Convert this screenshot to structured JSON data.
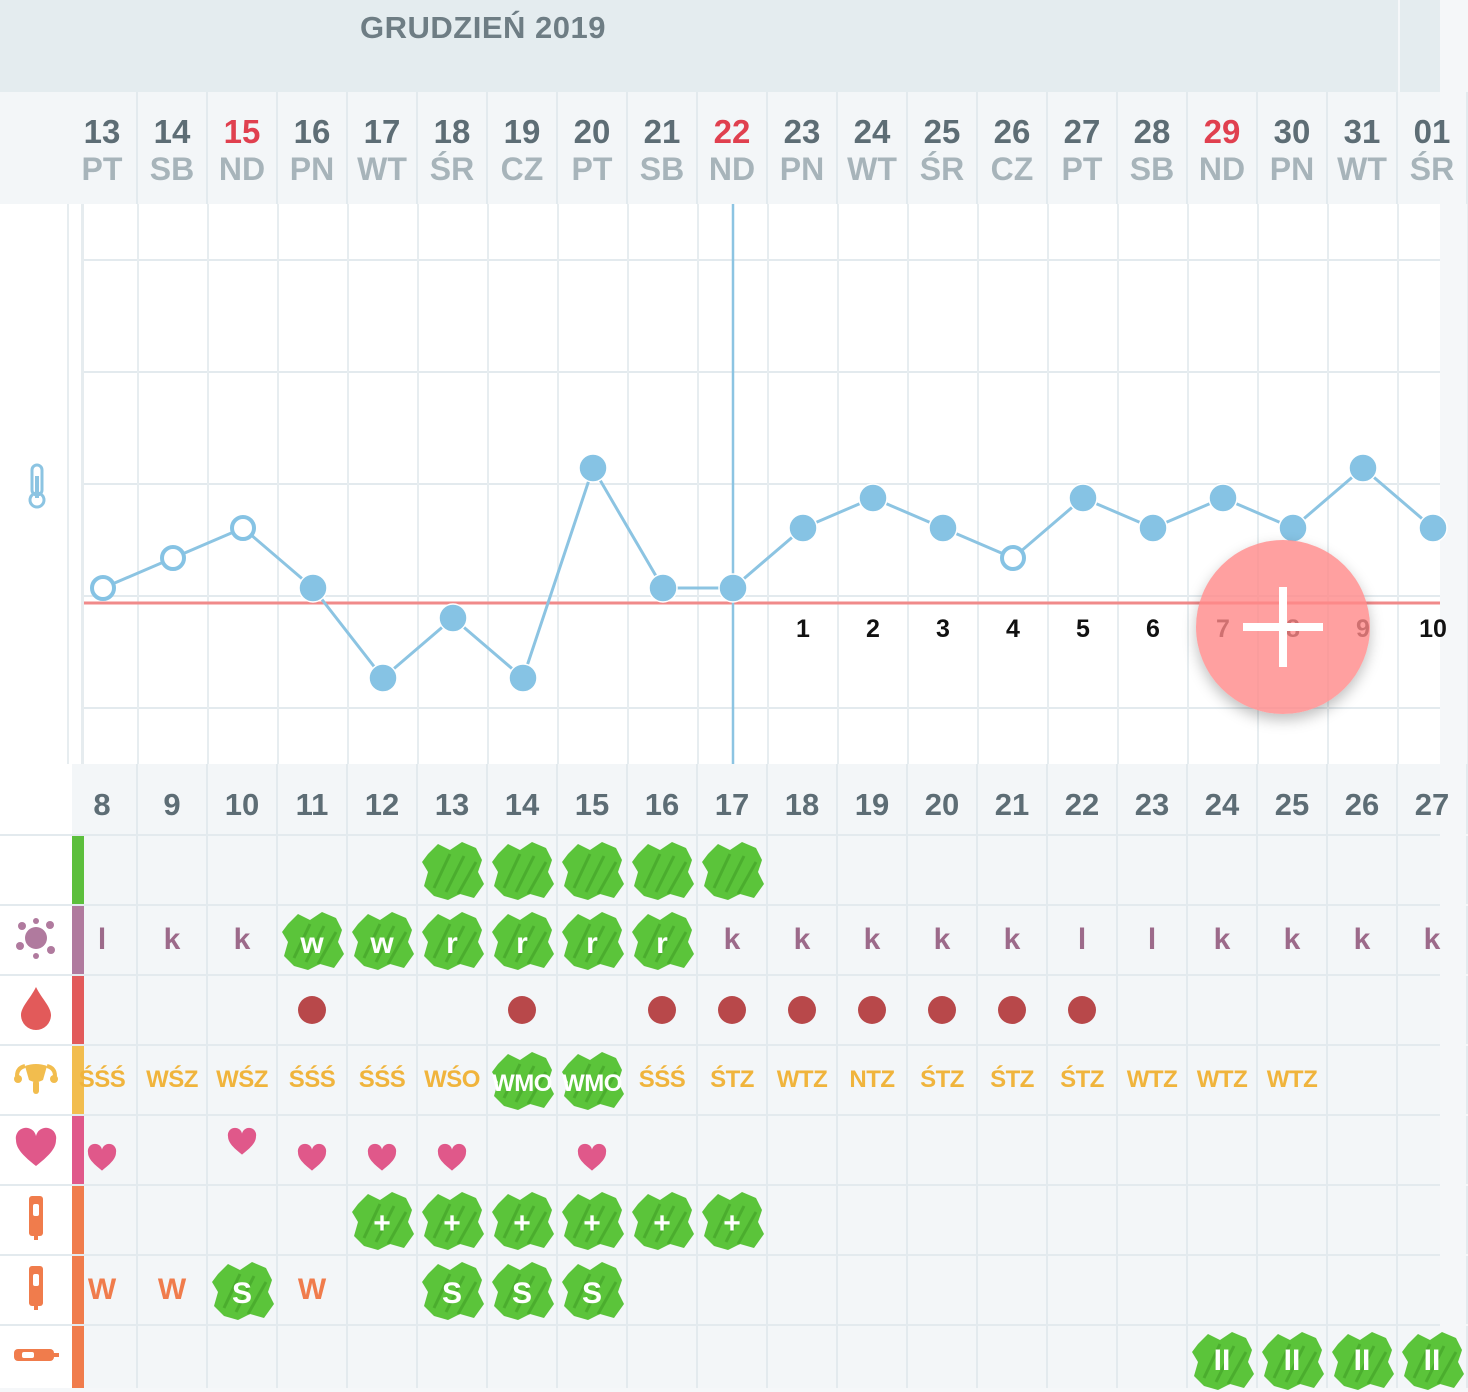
{
  "month_title": "GRUDZIEŃ 2019",
  "dates": [
    {
      "num": "13",
      "day": "PT",
      "sunday": false
    },
    {
      "num": "14",
      "day": "SB",
      "sunday": false
    },
    {
      "num": "15",
      "day": "ND",
      "sunday": true
    },
    {
      "num": "16",
      "day": "PN",
      "sunday": false
    },
    {
      "num": "17",
      "day": "WT",
      "sunday": false
    },
    {
      "num": "18",
      "day": "ŚR",
      "sunday": false
    },
    {
      "num": "19",
      "day": "CZ",
      "sunday": false
    },
    {
      "num": "20",
      "day": "PT",
      "sunday": false
    },
    {
      "num": "21",
      "day": "SB",
      "sunday": false
    },
    {
      "num": "22",
      "day": "ND",
      "sunday": true
    },
    {
      "num": "23",
      "day": "PN",
      "sunday": false
    },
    {
      "num": "24",
      "day": "WT",
      "sunday": false
    },
    {
      "num": "25",
      "day": "ŚR",
      "sunday": false
    },
    {
      "num": "26",
      "day": "CZ",
      "sunday": false
    },
    {
      "num": "27",
      "day": "PT",
      "sunday": false
    },
    {
      "num": "28",
      "day": "SB",
      "sunday": false
    },
    {
      "num": "29",
      "day": "ND",
      "sunday": true
    },
    {
      "num": "30",
      "day": "PN",
      "sunday": false
    },
    {
      "num": "31",
      "day": "WT",
      "sunday": false
    },
    {
      "num": "01",
      "day": "ŚR",
      "sunday": false
    }
  ],
  "chart_data": {
    "type": "line",
    "series": [
      {
        "values": [
          0,
          1,
          2,
          0,
          -3,
          -1,
          -3,
          4,
          0,
          0,
          2,
          3,
          2,
          1,
          3,
          2,
          3,
          2,
          4,
          2
        ],
        "open_markers": [
          true,
          true,
          true,
          false,
          false,
          false,
          false,
          false,
          false,
          false,
          false,
          false,
          false,
          true,
          false,
          false,
          false,
          false,
          false,
          false
        ]
      }
    ],
    "coverline_value": -0.5,
    "marker_day_index": 9,
    "post_marker_counts": [
      "1",
      "2",
      "3",
      "4",
      "5",
      "6",
      "7",
      "8",
      "9",
      "10"
    ]
  },
  "cycle_days": [
    "8",
    "9",
    "10",
    "11",
    "12",
    "13",
    "14",
    "15",
    "16",
    "17",
    "18",
    "19",
    "20",
    "21",
    "22",
    "23",
    "24",
    "25",
    "26",
    "27"
  ],
  "rows": [
    {
      "id": "row-1",
      "icon": "green-bar",
      "strip_color": "#5cbf3c",
      "text_color": "#ffffff",
      "cells": [
        {
          "i": 5,
          "t": "",
          "blob": true
        },
        {
          "i": 6,
          "t": "",
          "blob": true
        },
        {
          "i": 7,
          "t": "",
          "blob": true
        },
        {
          "i": 8,
          "t": "",
          "blob": true
        },
        {
          "i": 9,
          "t": "",
          "blob": true
        }
      ]
    },
    {
      "id": "mucus",
      "icon": "mucus-icon",
      "strip_color": "#b07a9e",
      "text_color": "#9c6a8a",
      "cells": [
        {
          "i": 0,
          "t": "l"
        },
        {
          "i": 1,
          "t": "k"
        },
        {
          "i": 2,
          "t": "k"
        },
        {
          "i": 3,
          "t": "w",
          "blob": true
        },
        {
          "i": 4,
          "t": "w",
          "blob": true
        },
        {
          "i": 5,
          "t": "r",
          "blob": true
        },
        {
          "i": 6,
          "t": "r",
          "blob": true
        },
        {
          "i": 7,
          "t": "r",
          "blob": true
        },
        {
          "i": 8,
          "t": "r",
          "blob": true
        },
        {
          "i": 9,
          "t": "k"
        },
        {
          "i": 10,
          "t": "k"
        },
        {
          "i": 11,
          "t": "k"
        },
        {
          "i": 12,
          "t": "k"
        },
        {
          "i": 13,
          "t": "k"
        },
        {
          "i": 14,
          "t": "l"
        },
        {
          "i": 15,
          "t": "l"
        },
        {
          "i": 16,
          "t": "k"
        },
        {
          "i": 17,
          "t": "k"
        },
        {
          "i": 18,
          "t": "k"
        },
        {
          "i": 19,
          "t": "k"
        }
      ]
    },
    {
      "id": "bleeding",
      "icon": "blood-drop-icon",
      "strip_color": "#e25a5a",
      "dot_color": "#b8484a",
      "dots": [
        3,
        6,
        8,
        9,
        10,
        11,
        12,
        13,
        14
      ]
    },
    {
      "id": "cervix",
      "icon": "uterus-icon",
      "strip_color": "#f2bd4e",
      "text_color": "#f0b43c",
      "cells": [
        {
          "i": 0,
          "t": "ŚŚŚ"
        },
        {
          "i": 1,
          "t": "WŚZ"
        },
        {
          "i": 2,
          "t": "WŚZ"
        },
        {
          "i": 3,
          "t": "ŚŚŚ"
        },
        {
          "i": 4,
          "t": "ŚŚŚ"
        },
        {
          "i": 5,
          "t": "WŚO"
        },
        {
          "i": 6,
          "t": "WMO",
          "blob": true
        },
        {
          "i": 7,
          "t": "WMO",
          "blob": true
        },
        {
          "i": 8,
          "t": "ŚŚŚ"
        },
        {
          "i": 9,
          "t": "ŚTZ"
        },
        {
          "i": 10,
          "t": "WTZ"
        },
        {
          "i": 11,
          "t": "NTZ"
        },
        {
          "i": 12,
          "t": "ŚTZ"
        },
        {
          "i": 13,
          "t": "ŚTZ"
        },
        {
          "i": 14,
          "t": "ŚTZ"
        },
        {
          "i": 15,
          "t": "WTZ"
        },
        {
          "i": 16,
          "t": "WTZ"
        },
        {
          "i": 17,
          "t": "WTZ"
        }
      ]
    },
    {
      "id": "intercourse",
      "icon": "heart-icon",
      "strip_color": "#e0588a",
      "heart_color": "#e0588a",
      "hearts": [
        {
          "i": 0,
          "pos": "low"
        },
        {
          "i": 2,
          "pos": "high"
        },
        {
          "i": 3,
          "pos": "low"
        },
        {
          "i": 4,
          "pos": "low"
        },
        {
          "i": 5,
          "pos": "low"
        },
        {
          "i": 7,
          "pos": "low"
        }
      ]
    },
    {
      "id": "test-lh",
      "icon": "test-strip-icon",
      "strip_color": "#f07c4c",
      "text_color": "#ffffff",
      "cells": [
        {
          "i": 4,
          "t": "+",
          "blob": true
        },
        {
          "i": 5,
          "t": "+",
          "blob": true
        },
        {
          "i": 6,
          "t": "+",
          "blob": true
        },
        {
          "i": 7,
          "t": "+",
          "blob": true
        },
        {
          "i": 8,
          "t": "+",
          "blob": true
        },
        {
          "i": 9,
          "t": "+",
          "blob": true
        }
      ]
    },
    {
      "id": "test-2",
      "icon": "test-strip-icon",
      "strip_color": "#f07c4c",
      "text_color": "#f07c4c",
      "cells": [
        {
          "i": 0,
          "t": "W"
        },
        {
          "i": 1,
          "t": "W"
        },
        {
          "i": 2,
          "t": "S",
          "blob": true
        },
        {
          "i": 3,
          "t": "W"
        },
        {
          "i": 5,
          "t": "S",
          "blob": true
        },
        {
          "i": 6,
          "t": "S",
          "blob": true
        },
        {
          "i": 7,
          "t": "S",
          "blob": true
        }
      ]
    },
    {
      "id": "test-3",
      "icon": "pregnancy-test-icon",
      "strip_color": "#f07c4c",
      "text_color": "#ffffff",
      "cells": [
        {
          "i": 16,
          "t": "II",
          "blob": true
        },
        {
          "i": 17,
          "t": "II",
          "blob": true
        },
        {
          "i": 18,
          "t": "II",
          "blob": true
        },
        {
          "i": 19,
          "t": "II",
          "blob": true
        }
      ]
    }
  ],
  "fab": {
    "label": "+"
  },
  "colors": {
    "line": "#8cc4e2",
    "marker": "#86c3e4",
    "coverline": "#f08a8a",
    "blob": "#5bc43a",
    "sunday": "#e0404f"
  }
}
